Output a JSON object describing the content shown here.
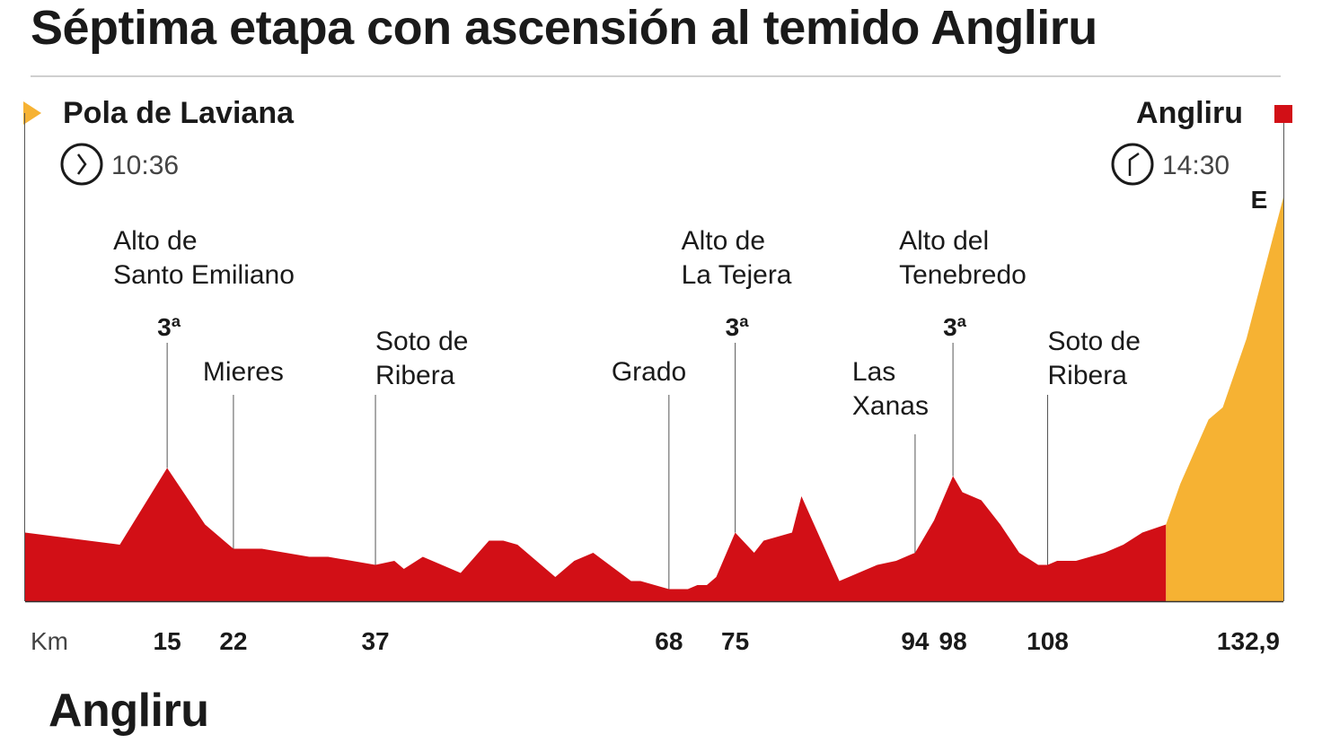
{
  "title": "Séptima etapa con ascensión al temido Angliru",
  "footer_title": "Angliru",
  "colors": {
    "profile": "#d20f16",
    "final_climb": "#f6b233",
    "start_marker": "#f6b233",
    "finish_marker": "#d20f16",
    "text": "#1a1a1a",
    "rule": "#cfcfcf"
  },
  "start": {
    "name": "Pola de Laviana",
    "time": "10:36",
    "icon": "clock-icon"
  },
  "finish": {
    "name": "Angliru",
    "time": "14:30",
    "icon": "clock-icon",
    "badge": "E"
  },
  "chart_data": {
    "type": "area",
    "xlabel": "Km",
    "xlim": [
      0,
      132.9
    ],
    "x_ticks": [
      {
        "value": 15,
        "label": "15"
      },
      {
        "value": 22,
        "label": "22"
      },
      {
        "value": 37,
        "label": "37"
      },
      {
        "value": 68,
        "label": "68"
      },
      {
        "value": 75,
        "label": "75"
      },
      {
        "value": 94,
        "label": "94"
      },
      {
        "value": 98,
        "label": "98"
      },
      {
        "value": 108,
        "label": "108"
      },
      {
        "value": 132.9,
        "label": "132,9"
      }
    ],
    "final_climb_start_km": 120.5,
    "profile_relative_height": [
      [
        0,
        0.17
      ],
      [
        10,
        0.14
      ],
      [
        15,
        0.33
      ],
      [
        19,
        0.19
      ],
      [
        22,
        0.13
      ],
      [
        25,
        0.13
      ],
      [
        30,
        0.11
      ],
      [
        32,
        0.11
      ],
      [
        37,
        0.09
      ],
      [
        39,
        0.1
      ],
      [
        40,
        0.08
      ],
      [
        42,
        0.11
      ],
      [
        46,
        0.07
      ],
      [
        49,
        0.15
      ],
      [
        50.5,
        0.15
      ],
      [
        52,
        0.14
      ],
      [
        56,
        0.06
      ],
      [
        58,
        0.1
      ],
      [
        60,
        0.12
      ],
      [
        64,
        0.05
      ],
      [
        65,
        0.05
      ],
      [
        68,
        0.03
      ],
      [
        70,
        0.03
      ],
      [
        71,
        0.04
      ],
      [
        72,
        0.04
      ],
      [
        73,
        0.06
      ],
      [
        75,
        0.17
      ],
      [
        77,
        0.12
      ],
      [
        78,
        0.15
      ],
      [
        81,
        0.17
      ],
      [
        82,
        0.26
      ],
      [
        86,
        0.05
      ],
      [
        88,
        0.07
      ],
      [
        90,
        0.09
      ],
      [
        92,
        0.1
      ],
      [
        94,
        0.12
      ],
      [
        96,
        0.2
      ],
      [
        98,
        0.31
      ],
      [
        99,
        0.27
      ],
      [
        101,
        0.25
      ],
      [
        103,
        0.19
      ],
      [
        105,
        0.12
      ],
      [
        107,
        0.09
      ],
      [
        108,
        0.09
      ],
      [
        109,
        0.1
      ],
      [
        111,
        0.1
      ],
      [
        114,
        0.12
      ],
      [
        116,
        0.14
      ],
      [
        118,
        0.17
      ],
      [
        120.5,
        0.19
      ],
      [
        122,
        0.29
      ],
      [
        125,
        0.45
      ],
      [
        126.5,
        0.48
      ],
      [
        129,
        0.65
      ],
      [
        132.9,
        1.0
      ]
    ],
    "climbs": [
      {
        "km": 15,
        "name_lines": [
          "Alto de",
          "Santo Emiliano"
        ],
        "category": "3ª"
      },
      {
        "km": 75,
        "name_lines": [
          "Alto de",
          "La Tejera"
        ],
        "category": "3ª"
      },
      {
        "km": 98,
        "name_lines": [
          "Alto del",
          "Tenebredo"
        ],
        "category": "3ª"
      }
    ],
    "waypoints": [
      {
        "km": 22,
        "name_lines": [
          "Mieres"
        ]
      },
      {
        "km": 37,
        "name_lines": [
          "Soto de",
          "Ribera"
        ]
      },
      {
        "km": 68,
        "name_lines": [
          "Grado"
        ]
      },
      {
        "km": 94,
        "name_lines": [
          "Las",
          "Xanas"
        ]
      },
      {
        "km": 108,
        "name_lines": [
          "Soto de",
          "Ribera"
        ]
      }
    ]
  }
}
